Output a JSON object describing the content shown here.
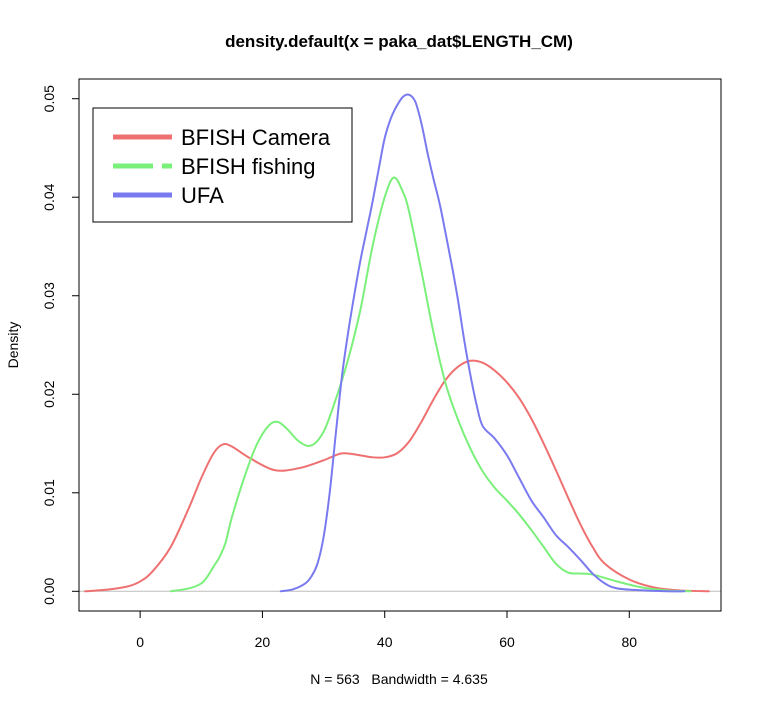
{
  "chart_data": {
    "type": "line",
    "title": "density.default(x = paka_dat$LENGTH_CM)",
    "xlabel": "N = 563   Bandwidth = 4.635",
    "ylabel": "Density",
    "xlim": [
      -10,
      95
    ],
    "ylim": [
      -0.002,
      0.052
    ],
    "xticks": [
      0,
      20,
      40,
      60,
      80
    ],
    "xtick_labels": [
      "0",
      "20",
      "40",
      "60",
      "80"
    ],
    "yticks": [
      0.0,
      0.01,
      0.02,
      0.03,
      0.04,
      0.05
    ],
    "ytick_labels": [
      "0.00",
      "0.01",
      "0.02",
      "0.03",
      "0.04",
      "0.05"
    ],
    "baseline": 0,
    "legend_position": "top-left",
    "series": [
      {
        "name": "BFISH Camera",
        "color": "#ef7070",
        "dash": "solid",
        "x": [
          -9,
          -5,
          -2,
          0,
          2,
          5,
          8,
          10,
          12,
          13.5,
          15,
          18,
          22,
          26,
          30,
          33,
          36,
          38,
          40,
          42,
          44,
          46,
          48,
          50,
          52,
          54,
          56,
          58,
          60,
          62,
          64,
          66,
          68,
          70,
          72,
          74,
          76,
          80,
          84,
          88,
          93
        ],
        "y": [
          0.0,
          0.0002,
          0.0005,
          0.001,
          0.002,
          0.0045,
          0.0085,
          0.0115,
          0.014,
          0.0149,
          0.0147,
          0.0135,
          0.0123,
          0.0125,
          0.0133,
          0.014,
          0.0138,
          0.0136,
          0.0136,
          0.014,
          0.0152,
          0.0172,
          0.0195,
          0.0215,
          0.0228,
          0.0234,
          0.0232,
          0.0224,
          0.0212,
          0.0196,
          0.0175,
          0.015,
          0.0123,
          0.0095,
          0.0068,
          0.0045,
          0.0028,
          0.0012,
          0.0004,
          0.0001,
          0.0
        ]
      },
      {
        "name": "BFISH fishing",
        "color": "#7af07a",
        "dash": "solid",
        "x": [
          5,
          8,
          10,
          11,
          12,
          13,
          14,
          15,
          17,
          19,
          21,
          22.5,
          24,
          26,
          28,
          30,
          32,
          34,
          36,
          38,
          40,
          41.5,
          43,
          44,
          46,
          48,
          50,
          52,
          54,
          56,
          58,
          60,
          62,
          64,
          66,
          68,
          70,
          72,
          74,
          78,
          82,
          86,
          90
        ],
        "y": [
          0.0,
          0.0003,
          0.0008,
          0.0015,
          0.0025,
          0.0035,
          0.005,
          0.0075,
          0.0115,
          0.0148,
          0.0168,
          0.0172,
          0.0165,
          0.0152,
          0.0148,
          0.0162,
          0.0195,
          0.0235,
          0.0285,
          0.035,
          0.04,
          0.042,
          0.0405,
          0.0385,
          0.0325,
          0.0262,
          0.021,
          0.0174,
          0.0145,
          0.0122,
          0.0105,
          0.0092,
          0.0078,
          0.0062,
          0.0045,
          0.0028,
          0.0019,
          0.0018,
          0.0017,
          0.001,
          0.0004,
          0.0001,
          0.0
        ]
      },
      {
        "name": "UFA",
        "color": "#7a7af0",
        "dash": "solid",
        "x": [
          23,
          25,
          27,
          28,
          29,
          30,
          31,
          32,
          33,
          34,
          35,
          36,
          37,
          38,
          39,
          40,
          41,
          42,
          43,
          44,
          45,
          46,
          47,
          48,
          49,
          50,
          51,
          52,
          53,
          54,
          55,
          56,
          58,
          60,
          62,
          64,
          66,
          68,
          70,
          72,
          74,
          76,
          78,
          82,
          86,
          89
        ],
        "y": [
          0.0,
          0.0002,
          0.0008,
          0.0015,
          0.0028,
          0.0055,
          0.01,
          0.016,
          0.0218,
          0.0262,
          0.03,
          0.0335,
          0.0365,
          0.0395,
          0.0428,
          0.046,
          0.048,
          0.0493,
          0.0502,
          0.0504,
          0.0497,
          0.0475,
          0.0445,
          0.0418,
          0.0393,
          0.0362,
          0.033,
          0.0295,
          0.0255,
          0.022,
          0.019,
          0.0168,
          0.0155,
          0.0138,
          0.0115,
          0.0092,
          0.0075,
          0.0057,
          0.0045,
          0.0032,
          0.0018,
          0.0008,
          0.0003,
          0.0001,
          0.0,
          0.0
        ]
      }
    ]
  }
}
